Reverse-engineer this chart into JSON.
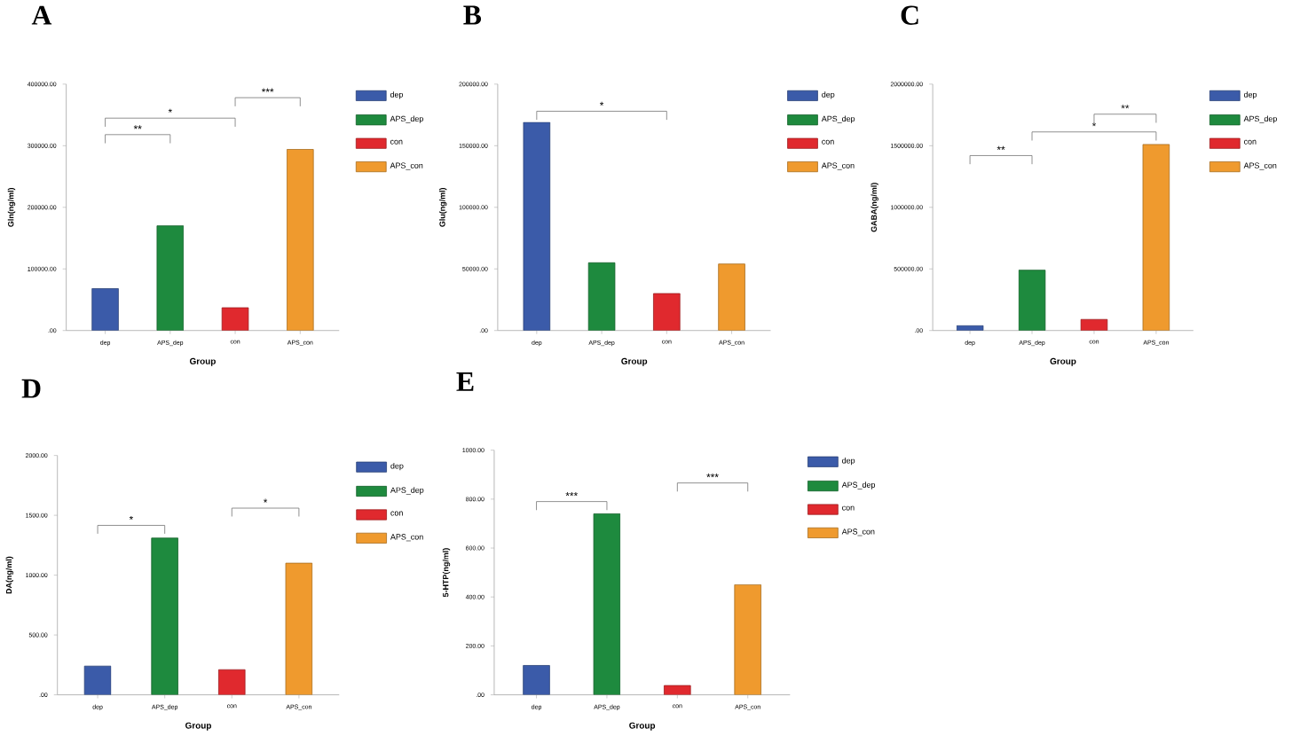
{
  "chart_data": [
    {
      "type": "bar",
      "title": "A",
      "xlabel": "Group",
      "ylabel": "Gln(ng/ml)",
      "categories": [
        "dep",
        "APS_dep",
        "con",
        "APS_con"
      ],
      "series": [
        {
          "name": "dep",
          "color": "#3b5ba9",
          "values": [
            68000,
            null,
            null,
            null
          ]
        },
        {
          "name": "APS_dep",
          "color": "#1e8a3e",
          "values": [
            null,
            170000,
            null,
            null
          ]
        },
        {
          "name": "con",
          "color": "#e0292e",
          "values": [
            null,
            null,
            37000,
            null
          ]
        },
        {
          "name": "APS_con",
          "color": "#ef9a2e",
          "values": [
            null,
            null,
            null,
            294000
          ]
        }
      ],
      "ylim": [
        0,
        400000
      ],
      "yticks": [
        {
          "value": 0,
          "label": ".00"
        },
        {
          "value": 100000,
          "label": "100000.00"
        },
        {
          "value": 200000,
          "label": "200000.00"
        },
        {
          "value": 300000,
          "label": "300000.00"
        },
        {
          "value": 400000,
          "label": "400000.00"
        }
      ],
      "legend": "top right",
      "annotations": [
        "**",
        "*",
        "***"
      ]
    },
    {
      "type": "bar",
      "title": "B",
      "xlabel": "Group",
      "ylabel": "Glu(ng/ml)",
      "categories": [
        "dep",
        "APS_dep",
        "con",
        "APS_con"
      ],
      "series": [
        {
          "name": "dep",
          "color": "#3b5ba9",
          "values": [
            169000,
            null,
            null,
            null
          ]
        },
        {
          "name": "APS_dep",
          "color": "#1e8a3e",
          "values": [
            null,
            55000,
            null,
            null
          ]
        },
        {
          "name": "con",
          "color": "#e0292e",
          "values": [
            null,
            null,
            30000,
            null
          ]
        },
        {
          "name": "APS_con",
          "color": "#ef9a2e",
          "values": [
            null,
            null,
            null,
            54000
          ]
        }
      ],
      "ylim": [
        0,
        200000
      ],
      "yticks": [
        {
          "value": 0,
          "label": ".00"
        },
        {
          "value": 50000,
          "label": "50000.00"
        },
        {
          "value": 100000,
          "label": "100000.00"
        },
        {
          "value": 150000,
          "label": "150000.00"
        },
        {
          "value": 200000,
          "label": "200000.00"
        }
      ],
      "legend": "top right",
      "annotations": [
        "*"
      ]
    },
    {
      "type": "bar",
      "title": "C",
      "xlabel": "Group",
      "ylabel": "GABA(ng/ml)",
      "categories": [
        "dep",
        "APS_dep",
        "con",
        "APS_con"
      ],
      "series": [
        {
          "name": "dep",
          "color": "#3b5ba9",
          "values": [
            40000,
            null,
            null,
            null
          ]
        },
        {
          "name": "APS_dep",
          "color": "#1e8a3e",
          "values": [
            null,
            490000,
            null,
            null
          ]
        },
        {
          "name": "con",
          "color": "#e0292e",
          "values": [
            null,
            null,
            90000,
            null
          ]
        },
        {
          "name": "APS_con",
          "color": "#ef9a2e",
          "values": [
            null,
            null,
            null,
            1510000
          ]
        }
      ],
      "ylim": [
        0,
        2000000
      ],
      "yticks": [
        {
          "value": 0,
          "label": ".00"
        },
        {
          "value": 500000,
          "label": "500000.00"
        },
        {
          "value": 1000000,
          "label": "1000000.00"
        },
        {
          "value": 1500000,
          "label": "1500000.00"
        },
        {
          "value": 2000000,
          "label": "2000000.00"
        }
      ],
      "legend": "top right",
      "annotations": [
        "**",
        "*",
        "**"
      ]
    },
    {
      "type": "bar",
      "title": "D",
      "xlabel": "Group",
      "ylabel": "DA(ng/ml)",
      "categories": [
        "dep",
        "APS_dep",
        "con",
        "APS_con"
      ],
      "series": [
        {
          "name": "dep",
          "color": "#3b5ba9",
          "values": [
            240,
            null,
            null,
            null
          ]
        },
        {
          "name": "APS_dep",
          "color": "#1e8a3e",
          "values": [
            null,
            1310,
            null,
            null
          ]
        },
        {
          "name": "con",
          "color": "#e0292e",
          "values": [
            null,
            null,
            210,
            null
          ]
        },
        {
          "name": "APS_con",
          "color": "#ef9a2e",
          "values": [
            null,
            null,
            null,
            1100
          ]
        }
      ],
      "ylim": [
        0,
        2000
      ],
      "yticks": [
        {
          "value": 0,
          "label": ".00"
        },
        {
          "value": 500,
          "label": "500.00"
        },
        {
          "value": 1000,
          "label": "1000.00"
        },
        {
          "value": 1500,
          "label": "1500.00"
        },
        {
          "value": 2000,
          "label": "2000.00"
        }
      ],
      "legend": "top right",
      "annotations": [
        "*",
        "*"
      ]
    },
    {
      "type": "bar",
      "title": "E",
      "xlabel": "Group",
      "ylabel": "5-HTP(ng/ml)",
      "categories": [
        "dep",
        "APS_dep",
        "con",
        "APS_con"
      ],
      "series": [
        {
          "name": "dep",
          "color": "#3b5ba9",
          "values": [
            120,
            null,
            null,
            null
          ]
        },
        {
          "name": "APS_dep",
          "color": "#1e8a3e",
          "values": [
            null,
            740,
            null,
            null
          ]
        },
        {
          "name": "con",
          "color": "#e0292e",
          "values": [
            null,
            null,
            38,
            null
          ]
        },
        {
          "name": "APS_con",
          "color": "#ef9a2e",
          "values": [
            null,
            null,
            null,
            450
          ]
        }
      ],
      "ylim": [
        0,
        1000
      ],
      "yticks": [
        {
          "value": 0,
          "label": ".00"
        },
        {
          "value": 200,
          "label": "200.00"
        },
        {
          "value": 400,
          "label": "400.00"
        },
        {
          "value": 600,
          "label": "600.00"
        },
        {
          "value": 800,
          "label": "800.00"
        },
        {
          "value": 1000,
          "label": "1000.00"
        }
      ],
      "legend": "top right",
      "annotations": [
        "***",
        "***"
      ]
    }
  ]
}
